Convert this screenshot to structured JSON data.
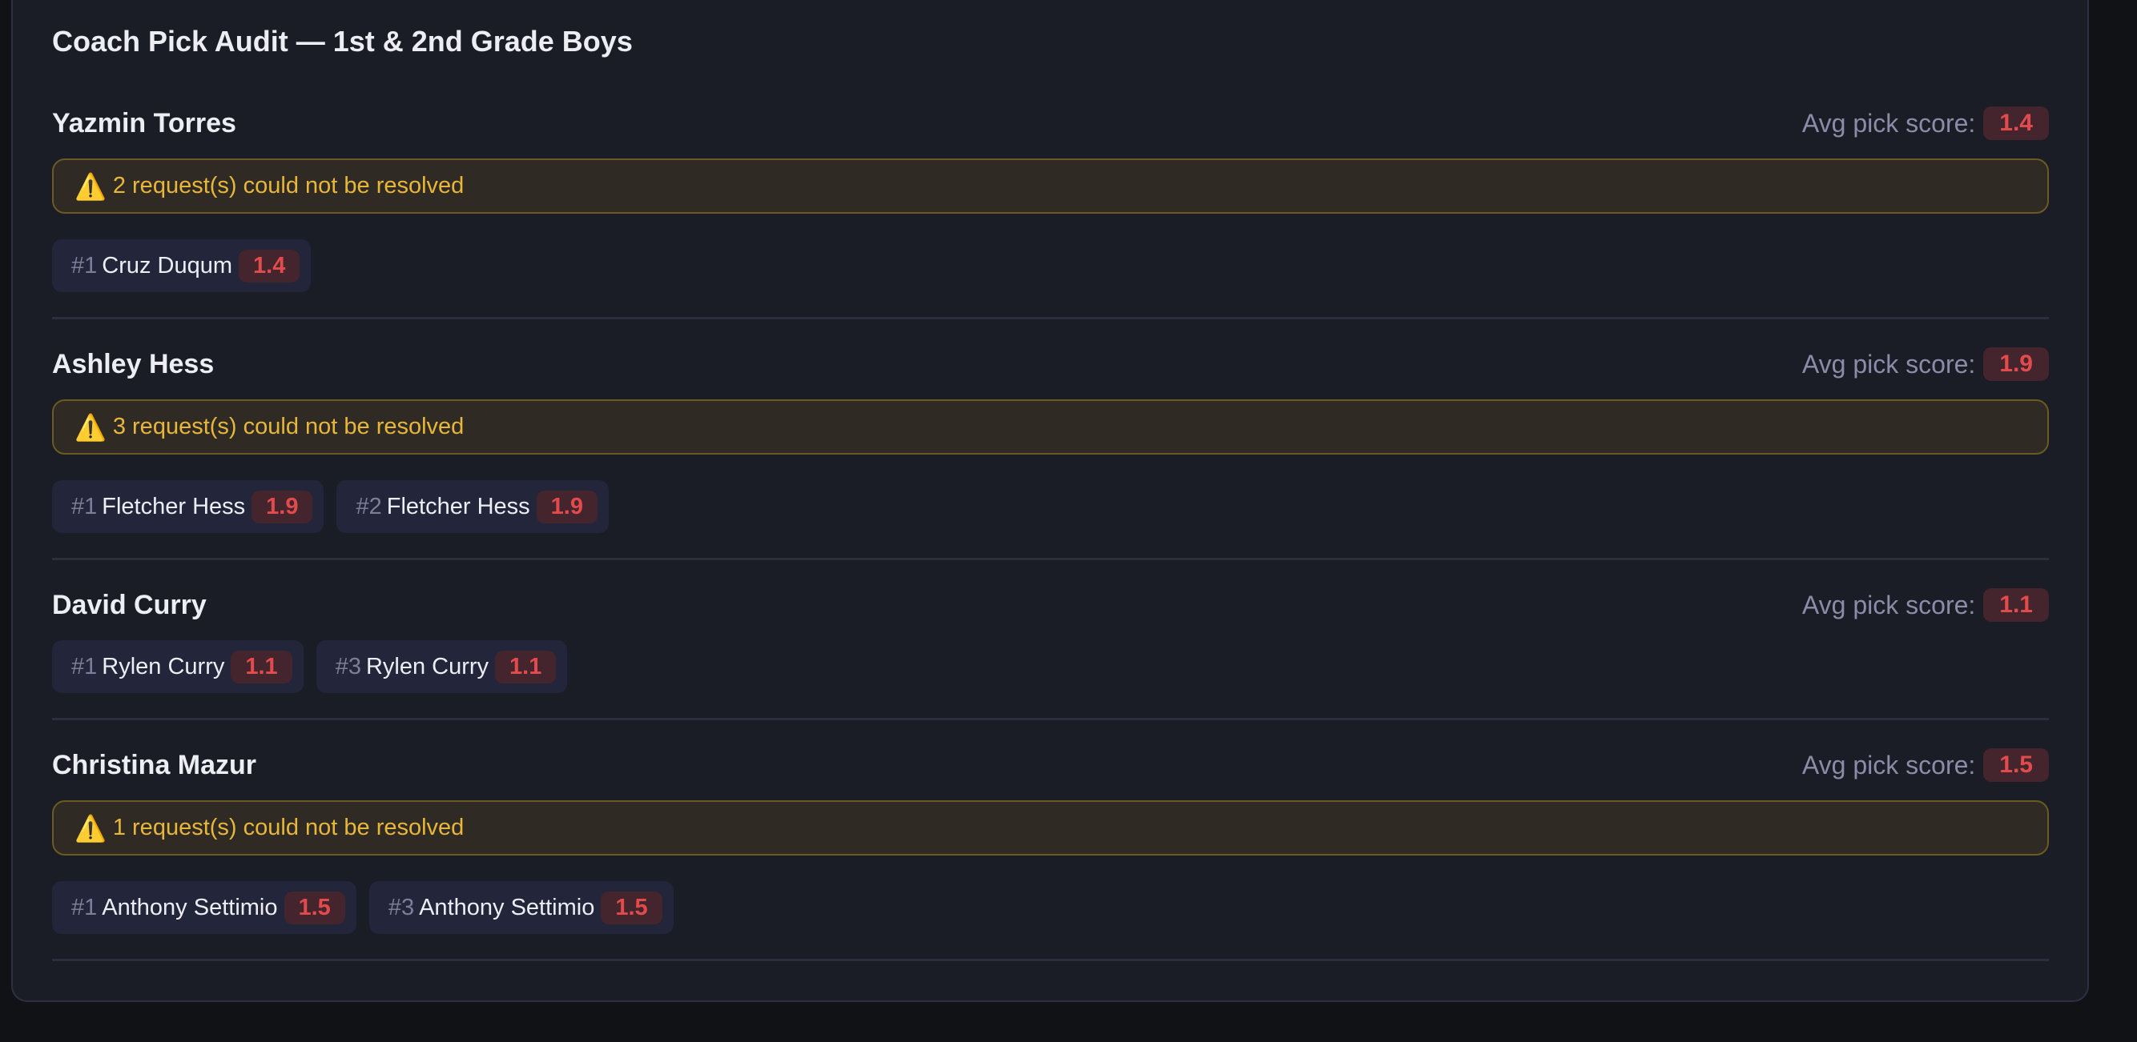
{
  "title": "Coach Pick Audit — 1st & 2nd Grade Boys",
  "avg_label": "Avg pick score:",
  "warning_icon": "warning-triangle-icon",
  "colors": {
    "warning": "#e8b73a",
    "score": "#e24b4b",
    "background": "#1b1d26"
  },
  "coaches": [
    {
      "name": "Yazmin Torres",
      "avg": "1.4",
      "warning": "2 request(s) could not be resolved",
      "picks": [
        {
          "num": "#1",
          "player": "Cruz Duqum",
          "score": "1.4"
        }
      ]
    },
    {
      "name": "Ashley Hess",
      "avg": "1.9",
      "warning": "3 request(s) could not be resolved",
      "picks": [
        {
          "num": "#1",
          "player": "Fletcher Hess",
          "score": "1.9"
        },
        {
          "num": "#2",
          "player": "Fletcher Hess",
          "score": "1.9"
        }
      ]
    },
    {
      "name": "David Curry",
      "avg": "1.1",
      "warning": null,
      "picks": [
        {
          "num": "#1",
          "player": "Rylen Curry",
          "score": "1.1"
        },
        {
          "num": "#3",
          "player": "Rylen Curry",
          "score": "1.1"
        }
      ]
    },
    {
      "name": "Christina Mazur",
      "avg": "1.5",
      "warning": "1 request(s) could not be resolved",
      "picks": [
        {
          "num": "#1",
          "player": "Anthony Settimio",
          "score": "1.5"
        },
        {
          "num": "#3",
          "player": "Anthony Settimio",
          "score": "1.5"
        }
      ]
    }
  ]
}
